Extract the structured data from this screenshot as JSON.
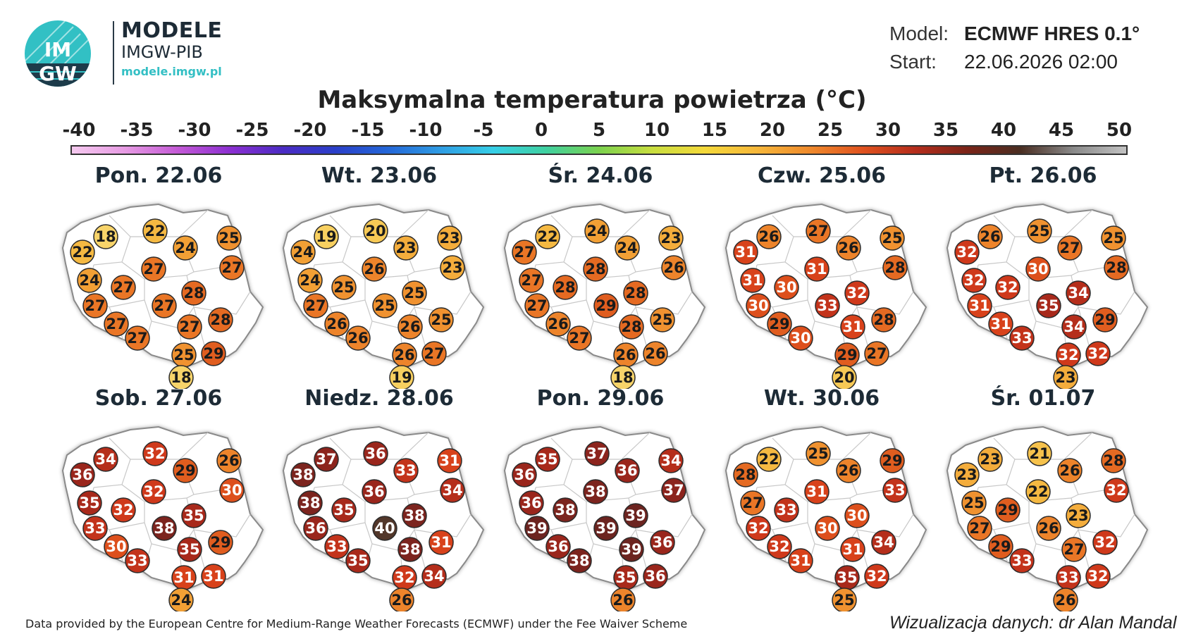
{
  "header": {
    "logo_text_top": "IM",
    "logo_text_bottom": "GW",
    "brand_title": "MODELE",
    "brand_subtitle": "IMGW-PIB",
    "brand_url": "modele.imgw.pl",
    "model_label": "Model:",
    "model_value": "ECMWF HRES 0.1°",
    "start_label": "Start:",
    "start_value": "22.06.2026 02:00"
  },
  "map_title": "Maksymalna temperatura powietrza (°C)",
  "scale": {
    "ticks": [
      "-40",
      "-35",
      "-30",
      "-25",
      "-20",
      "-15",
      "-10",
      "-5",
      "0",
      "5",
      "10",
      "15",
      "20",
      "25",
      "30",
      "35",
      "40",
      "45",
      "50"
    ],
    "min": -40,
    "max": 50,
    "colors": [
      "#f5c9ef",
      "#e79be3",
      "#c45ad6",
      "#8c2fd1",
      "#4b2bc4",
      "#2a3fc9",
      "#2467d8",
      "#2f9de4",
      "#36cfe7",
      "#3fd1a0",
      "#7bd24e",
      "#c8de3f",
      "#f4d93a",
      "#f6b73a",
      "#ef8a2c",
      "#e0521f",
      "#b52d1c",
      "#7a2418",
      "#4a2e22",
      "#8a8a8a",
      "#c2c2c2"
    ]
  },
  "temp_colors": {
    "18": "#f8d46a",
    "19": "#f8d060",
    "20": "#f7c955",
    "21": "#f6c24c",
    "22": "#f5b942",
    "23": "#f4ad3c",
    "24": "#f2a035",
    "25": "#f09230",
    "26": "#ed842b",
    "27": "#ea7626",
    "28": "#e56a22",
    "29": "#e05d1f",
    "30": "#dd4f1c",
    "31": "#d8421b",
    "32": "#cf391b",
    "33": "#c3331b",
    "34": "#b52e1b",
    "35": "#a8291b",
    "36": "#9a261c",
    "37": "#8c241d",
    "38": "#7c241e",
    "39": "#6c2420",
    "40": "#52372a"
  },
  "days": [
    {
      "date": "Pon. 22.06",
      "temps": [
        18,
        22,
        22,
        25,
        24,
        27,
        24,
        27,
        27,
        28,
        27,
        27,
        27,
        28,
        27,
        27,
        29,
        25,
        18
      ]
    },
    {
      "date": "Wt. 23.06",
      "temps": [
        19,
        20,
        24,
        23,
        23,
        23,
        24,
        26,
        25,
        25,
        25,
        27,
        26,
        25,
        26,
        26,
        27,
        26,
        19
      ]
    },
    {
      "date": "Śr. 24.06",
      "temps": [
        22,
        24,
        27,
        23,
        24,
        26,
        27,
        28,
        28,
        28,
        29,
        27,
        26,
        25,
        28,
        27,
        26,
        26,
        18
      ]
    },
    {
      "date": "Czw. 25.06",
      "temps": [
        26,
        27,
        31,
        25,
        26,
        28,
        31,
        31,
        30,
        32,
        33,
        30,
        29,
        28,
        31,
        30,
        27,
        29,
        20
      ]
    },
    {
      "date": "Pt. 26.06",
      "temps": [
        26,
        25,
        32,
        25,
        27,
        28,
        32,
        30,
        32,
        34,
        35,
        31,
        31,
        29,
        34,
        33,
        32,
        32,
        23
      ]
    },
    {
      "date": "Sob. 27.06",
      "temps": [
        34,
        32,
        36,
        26,
        29,
        30,
        35,
        32,
        32,
        35,
        38,
        33,
        30,
        29,
        35,
        33,
        31,
        31,
        24
      ]
    },
    {
      "date": "Niedz. 28.06",
      "temps": [
        37,
        36,
        38,
        31,
        33,
        34,
        38,
        36,
        35,
        38,
        40,
        36,
        33,
        31,
        38,
        35,
        34,
        32,
        26
      ]
    },
    {
      "date": "Pon. 29.06",
      "temps": [
        35,
        37,
        36,
        34,
        36,
        37,
        36,
        38,
        38,
        39,
        39,
        39,
        36,
        36,
        39,
        38,
        36,
        35,
        26
      ]
    },
    {
      "date": "Wt. 30.06",
      "temps": [
        22,
        25,
        28,
        29,
        26,
        33,
        27,
        31,
        33,
        30,
        30,
        32,
        32,
        34,
        31,
        31,
        32,
        35,
        25
      ]
    },
    {
      "date": "Śr. 01.07",
      "temps": [
        23,
        21,
        23,
        28,
        26,
        32,
        25,
        22,
        29,
        23,
        26,
        27,
        29,
        32,
        27,
        33,
        32,
        33,
        26
      ]
    }
  ],
  "credits": {
    "left": "Data provided by the European Centre for Medium-Range Weather Forecasts (ECMWF) under the Fee Waiver Scheme",
    "right": "Wizualizacja danych: dr Alan Mandal"
  }
}
